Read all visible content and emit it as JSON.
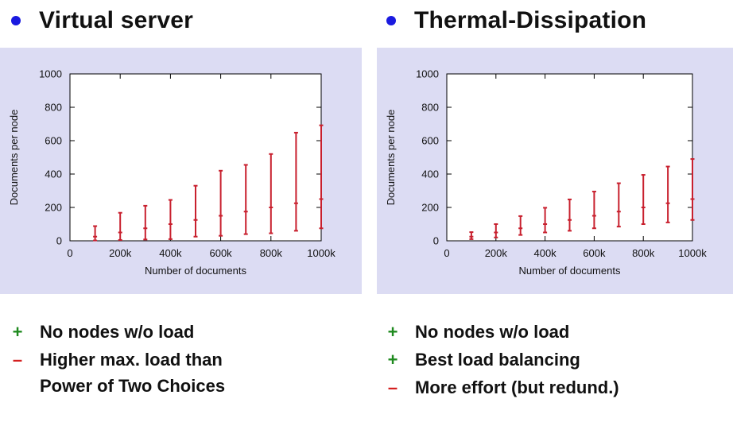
{
  "colors": {
    "bullet_dot": "#1a1ae0",
    "panel_bg": "#dcdcf3",
    "plot_bg": "#ffffff",
    "errorbar": "#c8202e",
    "plus": "#1f8a1f",
    "minus": "#d42020"
  },
  "columns": [
    {
      "heading": "Virtual server",
      "bullets": [
        {
          "mark": "+",
          "kind": "plus",
          "text": "No nodes w/o load"
        },
        {
          "mark": "–",
          "kind": "minus",
          "text": "Higher max. load than",
          "continuation": "Power of Two Choices"
        }
      ]
    },
    {
      "heading": "Thermal-Dissipation",
      "bullets": [
        {
          "mark": "+",
          "kind": "plus",
          "text": "No nodes w/o load"
        },
        {
          "mark": "+",
          "kind": "plus",
          "text": "Best load balancing"
        },
        {
          "mark": "–",
          "kind": "minus",
          "text": "More effort (but redund.)"
        }
      ]
    }
  ],
  "chart_data": [
    {
      "type": "errorbar",
      "xlabel": "Number of documents",
      "ylabel": "Documents per node",
      "xlim": [
        0,
        1000000
      ],
      "ylim": [
        0,
        1000
      ],
      "xticks": [
        0,
        200000,
        400000,
        600000,
        800000,
        1000000
      ],
      "xtick_labels": [
        "0",
        "200k",
        "400k",
        "600k",
        "800k",
        "1000k"
      ],
      "yticks": [
        0,
        200,
        400,
        600,
        800,
        1000
      ],
      "ytick_labels": [
        "0",
        "200",
        "400",
        "600",
        "800",
        "1000"
      ],
      "grid": false,
      "x": [
        100000,
        200000,
        300000,
        400000,
        500000,
        600000,
        700000,
        800000,
        900000,
        1000000
      ],
      "min": [
        2,
        5,
        8,
        10,
        25,
        30,
        40,
        45,
        60,
        75
      ],
      "mean": [
        25,
        50,
        75,
        100,
        125,
        150,
        175,
        200,
        225,
        250
      ],
      "max": [
        88,
        168,
        210,
        245,
        330,
        420,
        455,
        520,
        648,
        692
      ]
    },
    {
      "type": "errorbar",
      "xlabel": "Number of documents",
      "ylabel": "Documents per node",
      "xlim": [
        0,
        1000000
      ],
      "ylim": [
        0,
        1000
      ],
      "xticks": [
        0,
        200000,
        400000,
        600000,
        800000,
        1000000
      ],
      "xtick_labels": [
        "0",
        "200k",
        "400k",
        "600k",
        "800k",
        "1000k"
      ],
      "yticks": [
        0,
        200,
        400,
        600,
        800,
        1000
      ],
      "ytick_labels": [
        "0",
        "200",
        "400",
        "600",
        "800",
        "1000"
      ],
      "grid": false,
      "x": [
        100000,
        200000,
        300000,
        400000,
        500000,
        600000,
        700000,
        800000,
        900000,
        1000000
      ],
      "min": [
        10,
        20,
        35,
        50,
        60,
        75,
        85,
        100,
        110,
        125
      ],
      "mean": [
        25,
        50,
        75,
        100,
        125,
        150,
        175,
        200,
        225,
        250
      ],
      "max": [
        52,
        100,
        148,
        198,
        248,
        295,
        345,
        395,
        445,
        490
      ]
    }
  ]
}
